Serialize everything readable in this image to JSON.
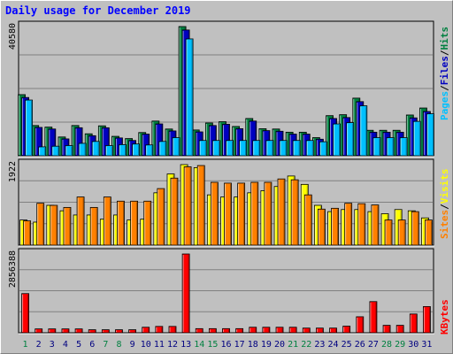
{
  "title": "Daily usage for December 2019",
  "colors": {
    "background": "#c0c0c0",
    "title": "#0000ff",
    "hits": "#008040",
    "files": "#0000c0",
    "pages": "#00c0ff",
    "visits": "#ffff00",
    "sites": "#ff8000",
    "kbytes": "#ff0000",
    "weekend_day": "#008040",
    "weekday": "#000080"
  },
  "chart_data": {
    "type": "bar",
    "title": "Daily usage for December 2019",
    "days": [
      "1",
      "2",
      "3",
      "4",
      "5",
      "6",
      "7",
      "8",
      "9",
      "10",
      "11",
      "12",
      "13",
      "14",
      "15",
      "16",
      "17",
      "18",
      "19",
      "20",
      "21",
      "22",
      "23",
      "24",
      "25",
      "26",
      "27",
      "28",
      "29",
      "30",
      "31"
    ],
    "weekend_days": [
      "1",
      "7",
      "8",
      "14",
      "15",
      "21",
      "22",
      "28",
      "29"
    ],
    "panels": [
      {
        "max_label": "40580",
        "ymax": 40580,
        "series": [
          {
            "name": "Hits",
            "color": "#008040",
            "values": [
              19200,
              9500,
              9000,
              5900,
              9500,
              6900,
              9400,
              6100,
              5400,
              7300,
              10900,
              8400,
              40580,
              8100,
              10300,
              10700,
              9200,
              11700,
              8500,
              8400,
              7400,
              7400,
              5700,
              12600,
              12900,
              18100,
              8000,
              8000,
              8000,
              12800,
              15000
            ]
          },
          {
            "name": "Files",
            "color": "#0000c0",
            "values": [
              18300,
              8900,
              8400,
              5300,
              8800,
              6300,
              8800,
              5600,
              4800,
              6800,
              10000,
              7800,
              39500,
              7500,
              9500,
              9900,
              8500,
              10900,
              7900,
              7700,
              6800,
              6800,
              5200,
              11700,
              12000,
              17000,
              7400,
              7400,
              7400,
              11900,
              13900
            ]
          },
          {
            "name": "Pages",
            "color": "#00c0ff",
            "values": [
              17500,
              2800,
              3000,
              3200,
              3900,
              4500,
              3200,
              3500,
              3700,
              3400,
              4500,
              5700,
              36700,
              4800,
              4800,
              4800,
              4800,
              4800,
              4800,
              4800,
              4800,
              4800,
              4400,
              10000,
              10400,
              15700,
              5700,
              5700,
              5700,
              10800,
              13200
            ]
          }
        ],
        "legend": [
          "Pages",
          "Files",
          "Hits"
        ]
      },
      {
        "max_label": "1922",
        "ymax": 1922,
        "series": [
          {
            "name": "Visits",
            "color": "#ffff00",
            "values": [
              600,
              550,
              950,
              820,
              720,
              720,
              620,
              720,
              600,
              620,
              1250,
              1700,
              1922,
              1850,
              1200,
              1150,
              1150,
              1250,
              1300,
              1400,
              1650,
              1450,
              950,
              800,
              850,
              850,
              800,
              750,
              850,
              820,
              650
            ]
          },
          {
            "name": "Sites",
            "color": "#ff8000",
            "values": [
              580,
              1000,
              950,
              900,
              1150,
              900,
              1150,
              1050,
              1050,
              1050,
              1350,
              1600,
              1870,
              1900,
              1500,
              1480,
              1480,
              1500,
              1500,
              1580,
              1560,
              1200,
              860,
              880,
              1000,
              990,
              960,
              600,
              600,
              800,
              600
            ]
          }
        ],
        "legend": [
          "Sites",
          "Visits"
        ]
      },
      {
        "max_label": "2856388",
        "ymax": 2856388,
        "series": [
          {
            "name": "KBytes",
            "color": "#ff0000",
            "values": [
              1420000,
              140000,
              140000,
              140000,
              140000,
              110000,
              110000,
              110000,
              110000,
              200000,
              230000,
              230000,
              2856388,
              150000,
              150000,
              150000,
              150000,
              200000,
              200000,
              200000,
              200000,
              170000,
              170000,
              170000,
              240000,
              580000,
              1130000,
              270000,
              270000,
              680000,
              950000
            ]
          }
        ],
        "legend": [
          "KBytes"
        ]
      }
    ]
  }
}
